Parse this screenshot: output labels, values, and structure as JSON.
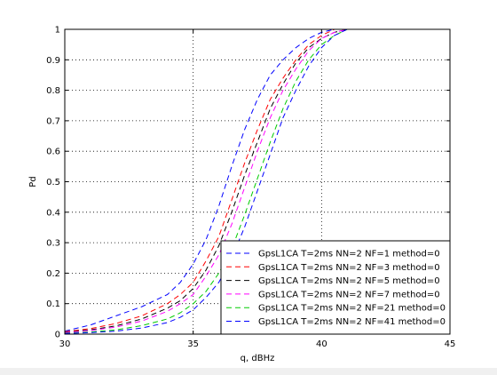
{
  "chart_data": {
    "type": "line",
    "title": "",
    "xlabel": "q, dBHz",
    "ylabel": "Pd",
    "xlim": [
      30,
      45
    ],
    "ylim": [
      0,
      1
    ],
    "xticks": [
      30,
      35,
      40,
      45
    ],
    "yticks": [
      0,
      0.1,
      0.2,
      0.3,
      0.4,
      0.5,
      0.6,
      0.7,
      0.8,
      0.9,
      1
    ],
    "grid": true,
    "legend_position": "bottom-right",
    "x": [
      30,
      31,
      32,
      33,
      34,
      34.5,
      35,
      35.5,
      36,
      36.5,
      37,
      37.5,
      38,
      38.5,
      39,
      39.5,
      40,
      40.5,
      41,
      42,
      43,
      44,
      45
    ],
    "series": [
      {
        "name": "GpsL1CA T=2ms NN=2 NF=1 method=0",
        "color": "#0000ff",
        "values": [
          0.01,
          0.03,
          0.06,
          0.09,
          0.13,
          0.17,
          0.23,
          0.31,
          0.42,
          0.55,
          0.67,
          0.77,
          0.85,
          0.9,
          0.94,
          0.97,
          0.99,
          1,
          1,
          1,
          1,
          1,
          1
        ]
      },
      {
        "name": "GpsL1CA T=2ms NN=2 NF=3 method=0",
        "color": "#ff0000",
        "values": [
          0.008,
          0.018,
          0.035,
          0.06,
          0.1,
          0.13,
          0.17,
          0.24,
          0.32,
          0.44,
          0.56,
          0.67,
          0.77,
          0.84,
          0.9,
          0.95,
          0.98,
          1,
          1,
          1,
          1,
          1,
          1
        ]
      },
      {
        "name": "GpsL1CA T=2ms NN=2 NF=5 method=0",
        "color": "#000000",
        "values": [
          0.006,
          0.014,
          0.027,
          0.05,
          0.085,
          0.11,
          0.15,
          0.21,
          0.29,
          0.4,
          0.52,
          0.63,
          0.74,
          0.82,
          0.89,
          0.94,
          0.97,
          0.99,
          1,
          1,
          1,
          1,
          1
        ]
      },
      {
        "name": "GpsL1CA T=2ms NN=2 NF=7 method=0",
        "color": "#ff00ff",
        "values": [
          0.005,
          0.012,
          0.023,
          0.043,
          0.075,
          0.1,
          0.13,
          0.19,
          0.26,
          0.36,
          0.48,
          0.6,
          0.71,
          0.8,
          0.87,
          0.93,
          0.97,
          0.99,
          1,
          1,
          1,
          1,
          1
        ]
      },
      {
        "name": "GpsL1CA T=2ms NN=2 NF=21 method=0",
        "color": "#00cc00",
        "values": [
          0.003,
          0.007,
          0.014,
          0.028,
          0.05,
          0.07,
          0.1,
          0.14,
          0.2,
          0.28,
          0.39,
          0.51,
          0.63,
          0.74,
          0.83,
          0.9,
          0.95,
          0.98,
          1,
          1,
          1,
          1,
          1
        ]
      },
      {
        "name": "GpsL1CA T=2ms NN=2 NF=41 method=0",
        "color": "#0000ff",
        "values": [
          0.002,
          0.005,
          0.01,
          0.02,
          0.038,
          0.055,
          0.08,
          0.12,
          0.17,
          0.25,
          0.35,
          0.47,
          0.59,
          0.71,
          0.8,
          0.88,
          0.94,
          0.98,
          1,
          1,
          1,
          1,
          1
        ]
      }
    ]
  }
}
